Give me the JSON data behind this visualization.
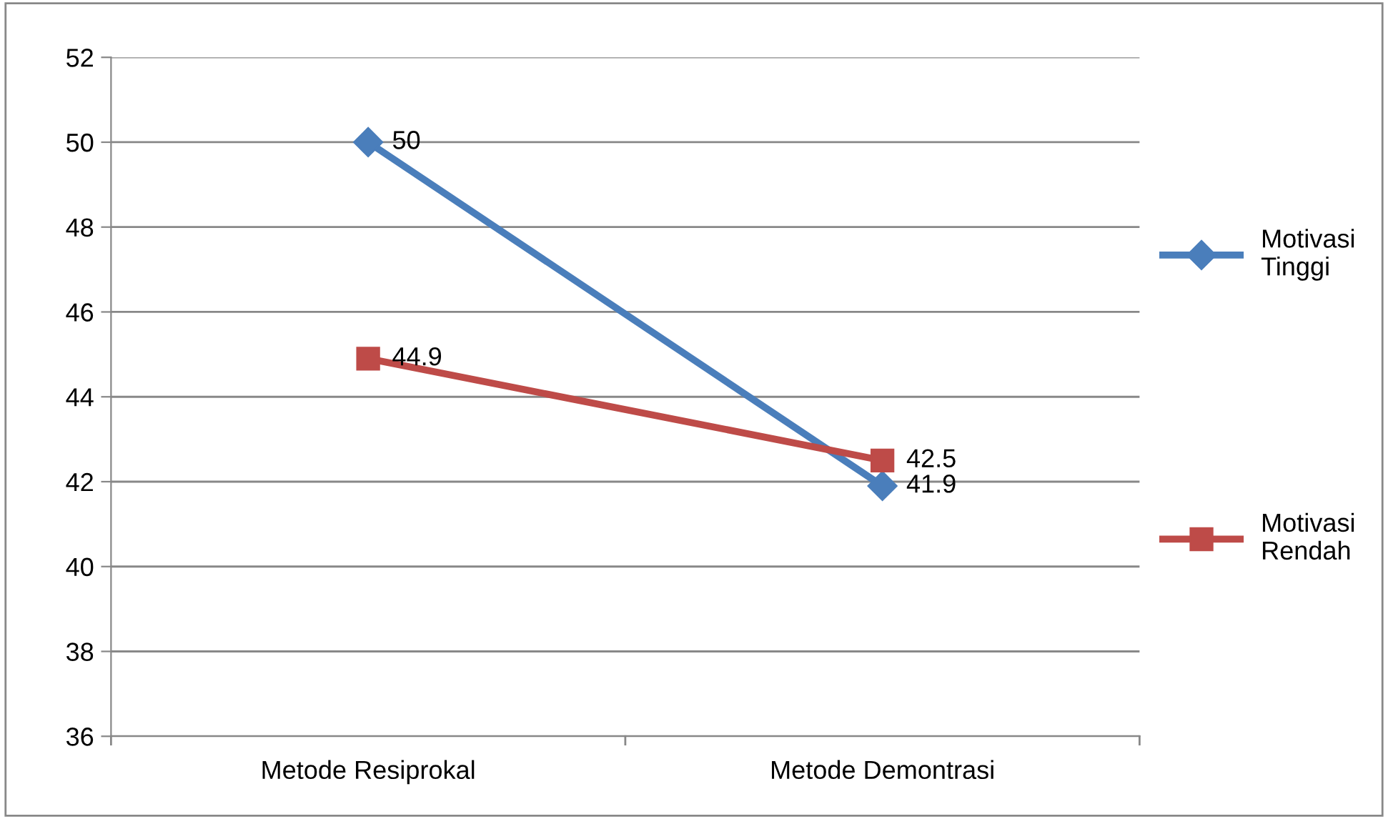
{
  "chart_data": {
    "type": "line",
    "categories": [
      "Metode Resiprokal",
      "Metode Demontrasi"
    ],
    "series": [
      {
        "name": "Motivasi Tinggi",
        "color": "#4a7ebb",
        "marker": "diamond",
        "values": [
          50,
          41.9
        ]
      },
      {
        "name": "Motivasi Rendah",
        "color": "#be4b48",
        "marker": "square",
        "values": [
          44.9,
          42.5
        ]
      }
    ],
    "ylim": [
      36,
      52
    ],
    "yticks": [
      36,
      38,
      40,
      42,
      44,
      46,
      48,
      50,
      52
    ],
    "grid": "y",
    "legend": "right",
    "data_labels": true,
    "line_style": "solid"
  }
}
